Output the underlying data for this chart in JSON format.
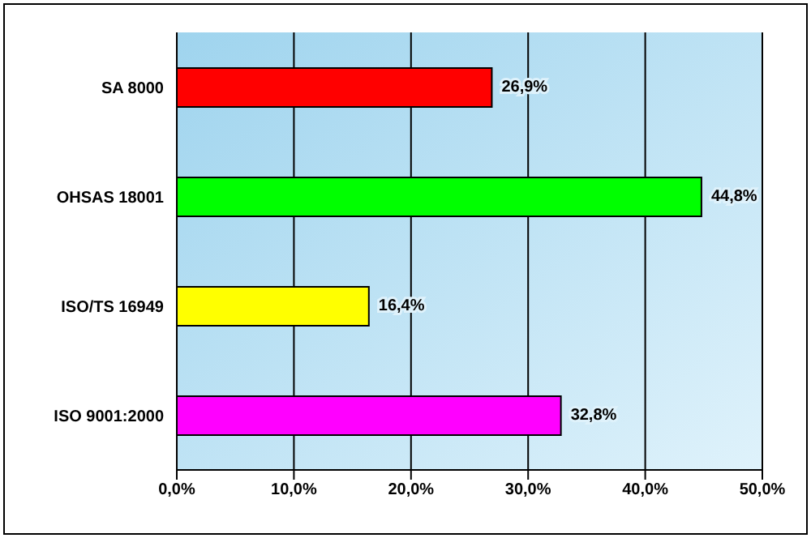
{
  "chart_data": {
    "type": "bar",
    "orientation": "horizontal",
    "categories": [
      "SA 8000",
      "OHSAS 18001",
      "ISO/TS 16949",
      "ISO 9001:2000"
    ],
    "values": [
      26.9,
      44.8,
      16.4,
      32.8
    ],
    "colors": [
      "#ff0000",
      "#00ff00",
      "#ffff00",
      "#ff00ff"
    ],
    "value_labels": [
      "26,9%",
      "44,8%",
      "16,4%",
      "32,8%"
    ],
    "xlim": [
      0,
      50
    ],
    "xticks": [
      {
        "value": 0,
        "label": "0,0%"
      },
      {
        "value": 10,
        "label": "10,0%"
      },
      {
        "value": 20,
        "label": "20,0%"
      },
      {
        "value": 30,
        "label": "30,0%"
      },
      {
        "value": 40,
        "label": "40,0%"
      },
      {
        "value": 50,
        "label": "50,0%"
      }
    ],
    "grid": "x"
  }
}
